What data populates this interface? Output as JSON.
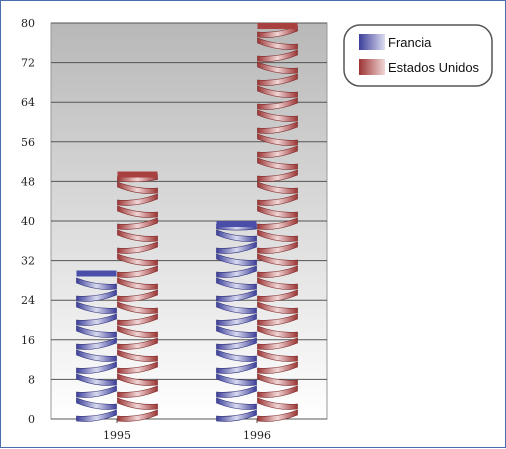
{
  "chart_data": {
    "type": "bar",
    "categories": [
      "1995",
      "1996"
    ],
    "ylim": [
      0,
      80
    ],
    "yticks": [
      0,
      8,
      16,
      24,
      32,
      40,
      48,
      56,
      64,
      72,
      80
    ],
    "grid": true,
    "legend_position": "top-right",
    "series": [
      {
        "name": "Francia",
        "values": [
          30,
          40
        ],
        "color": "#5a5fb0"
      },
      {
        "name": "Estados Unidos",
        "values": [
          50,
          80
        ],
        "color": "#b04a4a"
      }
    ]
  }
}
